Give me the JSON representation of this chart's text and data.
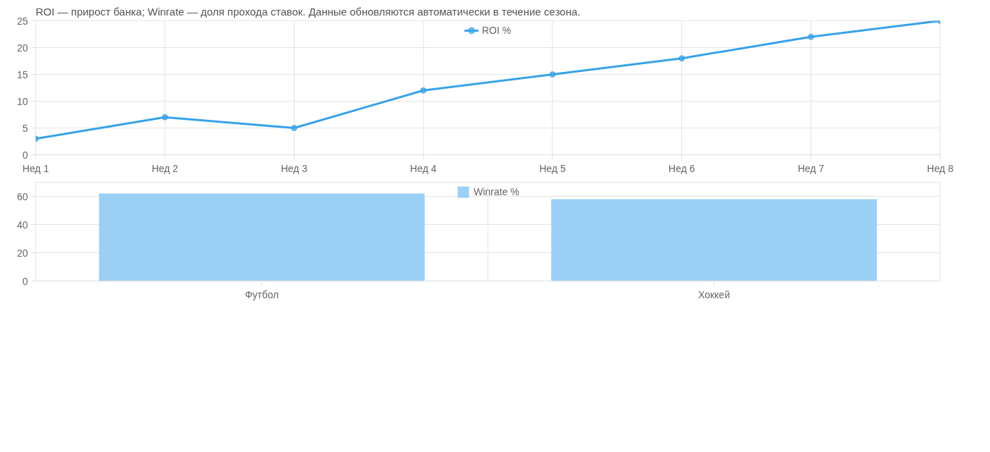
{
  "chart_data": [
    {
      "type": "line",
      "annotations": [
        "ROI — прирост банка; Winrate — доля прохода ставок. Данные обновляются автоматически в течение сезона."
      ],
      "categories": [
        "Нед 1",
        "Нед 2",
        "Нед 3",
        "Нед 4",
        "Нед 5",
        "Нед 6",
        "Нед 7",
        "Нед 8"
      ],
      "series": [
        {
          "name": "ROI %",
          "color": "#36a2eb",
          "values": [
            3,
            7,
            5,
            12,
            15,
            18,
            22,
            25
          ]
        }
      ],
      "ylim": [
        0,
        25
      ],
      "yticks": [
        0,
        5,
        10,
        15,
        20,
        25
      ],
      "grid": true,
      "legend": "top",
      "marker": "circle",
      "line_style": "solid"
    },
    {
      "type": "bar",
      "categories": [
        "Футбол",
        "Хоккей"
      ],
      "series": [
        {
          "name": "Winrate %",
          "color": "#9ad0f5",
          "values": [
            62,
            58
          ]
        }
      ],
      "ylim": [
        0,
        70
      ],
      "yticks": [
        0,
        20,
        40,
        60
      ],
      "grid": true,
      "legend": "top"
    }
  ]
}
